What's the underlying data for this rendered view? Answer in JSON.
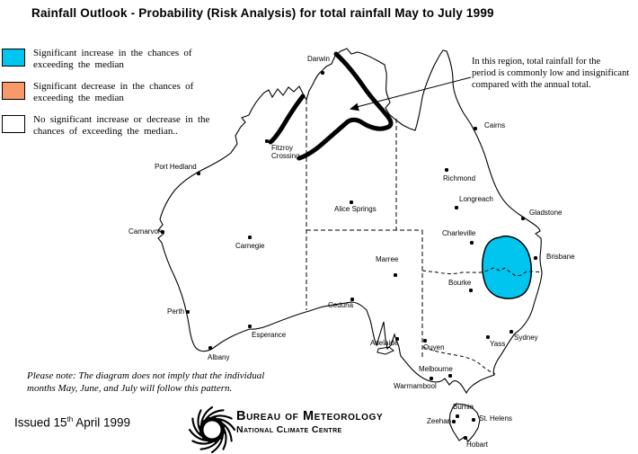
{
  "title": "Rainfall Outlook - Probability (Risk Analysis) for total rainfall May to July 1999",
  "legend": {
    "items": [
      {
        "color": "#00c6ef",
        "lines": [
          "Significant increase in the chances of",
          "exceeding the median"
        ]
      },
      {
        "color": "#f8996c",
        "lines": [
          "Significant decrease in the chances of",
          "exceeding the median"
        ]
      },
      {
        "color": "#ffffff",
        "lines": [
          "No significant increase or decrease in the",
          "chances of exceeding the median.."
        ]
      }
    ]
  },
  "annotation": {
    "lines": [
      "In this region, total rainfall for the",
      "period is commonly low and insignificant",
      "compared with the annual total."
    ]
  },
  "note": {
    "lines": [
      "Please note: The diagram does not imply that the individual",
      "months May, June, and July will follow this pattern."
    ]
  },
  "issued": {
    "prefix": "Issued 15",
    "sup": "th",
    "suffix": " April 1999"
  },
  "footer": {
    "org": "Bureau of Meteorology",
    "dept": "National Climate Centre"
  },
  "map": {
    "region_color": "#00c6ef",
    "cities": [
      {
        "name": "Darwin",
        "dot": [
          359,
          81
        ],
        "label": [
          342,
          62
        ]
      },
      {
        "name": "Fitzroy Crossing",
        "dot": [
          297,
          157
        ],
        "label": [
          302,
          161
        ],
        "wrap": 40
      },
      {
        "name": "Port Hedland",
        "dot": [
          221,
          193
        ],
        "label": [
          172,
          182
        ]
      },
      {
        "name": "Carnarvon",
        "dot": [
          181,
          258
        ],
        "label": [
          143,
          254
        ]
      },
      {
        "name": "Carnegie",
        "dot": [
          278,
          264
        ],
        "label": [
          262,
          270
        ]
      },
      {
        "name": "Perth",
        "dot": [
          209,
          347
        ],
        "label": [
          186,
          343
        ]
      },
      {
        "name": "Esperance",
        "dot": [
          278,
          363
        ],
        "label": [
          280,
          369
        ]
      },
      {
        "name": "Albany",
        "dot": [
          234,
          387
        ],
        "label": [
          231,
          394
        ]
      },
      {
        "name": "Ceduna",
        "dot": [
          392,
          333
        ],
        "label": [
          365,
          336
        ]
      },
      {
        "name": "Adelaide",
        "dot": [
          442,
          377
        ],
        "label": [
          412,
          378
        ]
      },
      {
        "name": "Alice Springs",
        "dot": [
          391,
          225
        ],
        "label": [
          372,
          229
        ]
      },
      {
        "name": "Marree",
        "dot": [
          440,
          306
        ],
        "label": [
          418,
          285
        ]
      },
      {
        "name": "Ouyen",
        "dot": [
          473,
          379
        ],
        "label": [
          471,
          383
        ]
      },
      {
        "name": "Melbourne",
        "dot": [
          501,
          418
        ],
        "label": [
          466,
          407
        ]
      },
      {
        "name": "Warrnambool",
        "dot": [
          480,
          421
        ],
        "label": [
          438,
          426
        ]
      },
      {
        "name": "Cairns",
        "dot": [
          529,
          143
        ],
        "label": [
          539,
          136
        ]
      },
      {
        "name": "Richmond",
        "dot": [
          497,
          189
        ],
        "label": [
          493,
          195
        ]
      },
      {
        "name": "Longreach",
        "dot": [
          508,
          231
        ],
        "label": [
          511,
          218
        ]
      },
      {
        "name": "Gladstone",
        "dot": [
          582,
          243
        ],
        "label": [
          589,
          233
        ]
      },
      {
        "name": "Charleville",
        "dot": [
          525,
          270
        ],
        "label": [
          492,
          256
        ]
      },
      {
        "name": "Bourke",
        "dot": [
          524,
          323
        ],
        "label": [
          499,
          311
        ]
      },
      {
        "name": "Brisbane",
        "dot": [
          596,
          287
        ],
        "label": [
          608,
          282
        ]
      },
      {
        "name": "Sydney",
        "dot": [
          569,
          369
        ],
        "label": [
          572,
          372
        ]
      },
      {
        "name": "Yass",
        "dot": [
          543,
          375
        ],
        "label": [
          545,
          379
        ]
      },
      {
        "name": "Burnie",
        "dot": [
          509,
          463
        ],
        "label": [
          504,
          449
        ]
      },
      {
        "name": "Zeehan",
        "dot": [
          505,
          469
        ],
        "label": [
          475,
          465
        ]
      },
      {
        "name": "St. Helens",
        "dot": [
          527,
          467
        ],
        "label": [
          533,
          462
        ]
      },
      {
        "name": "Hobart",
        "dot": [
          518,
          487
        ],
        "label": [
          519,
          491
        ]
      }
    ]
  }
}
